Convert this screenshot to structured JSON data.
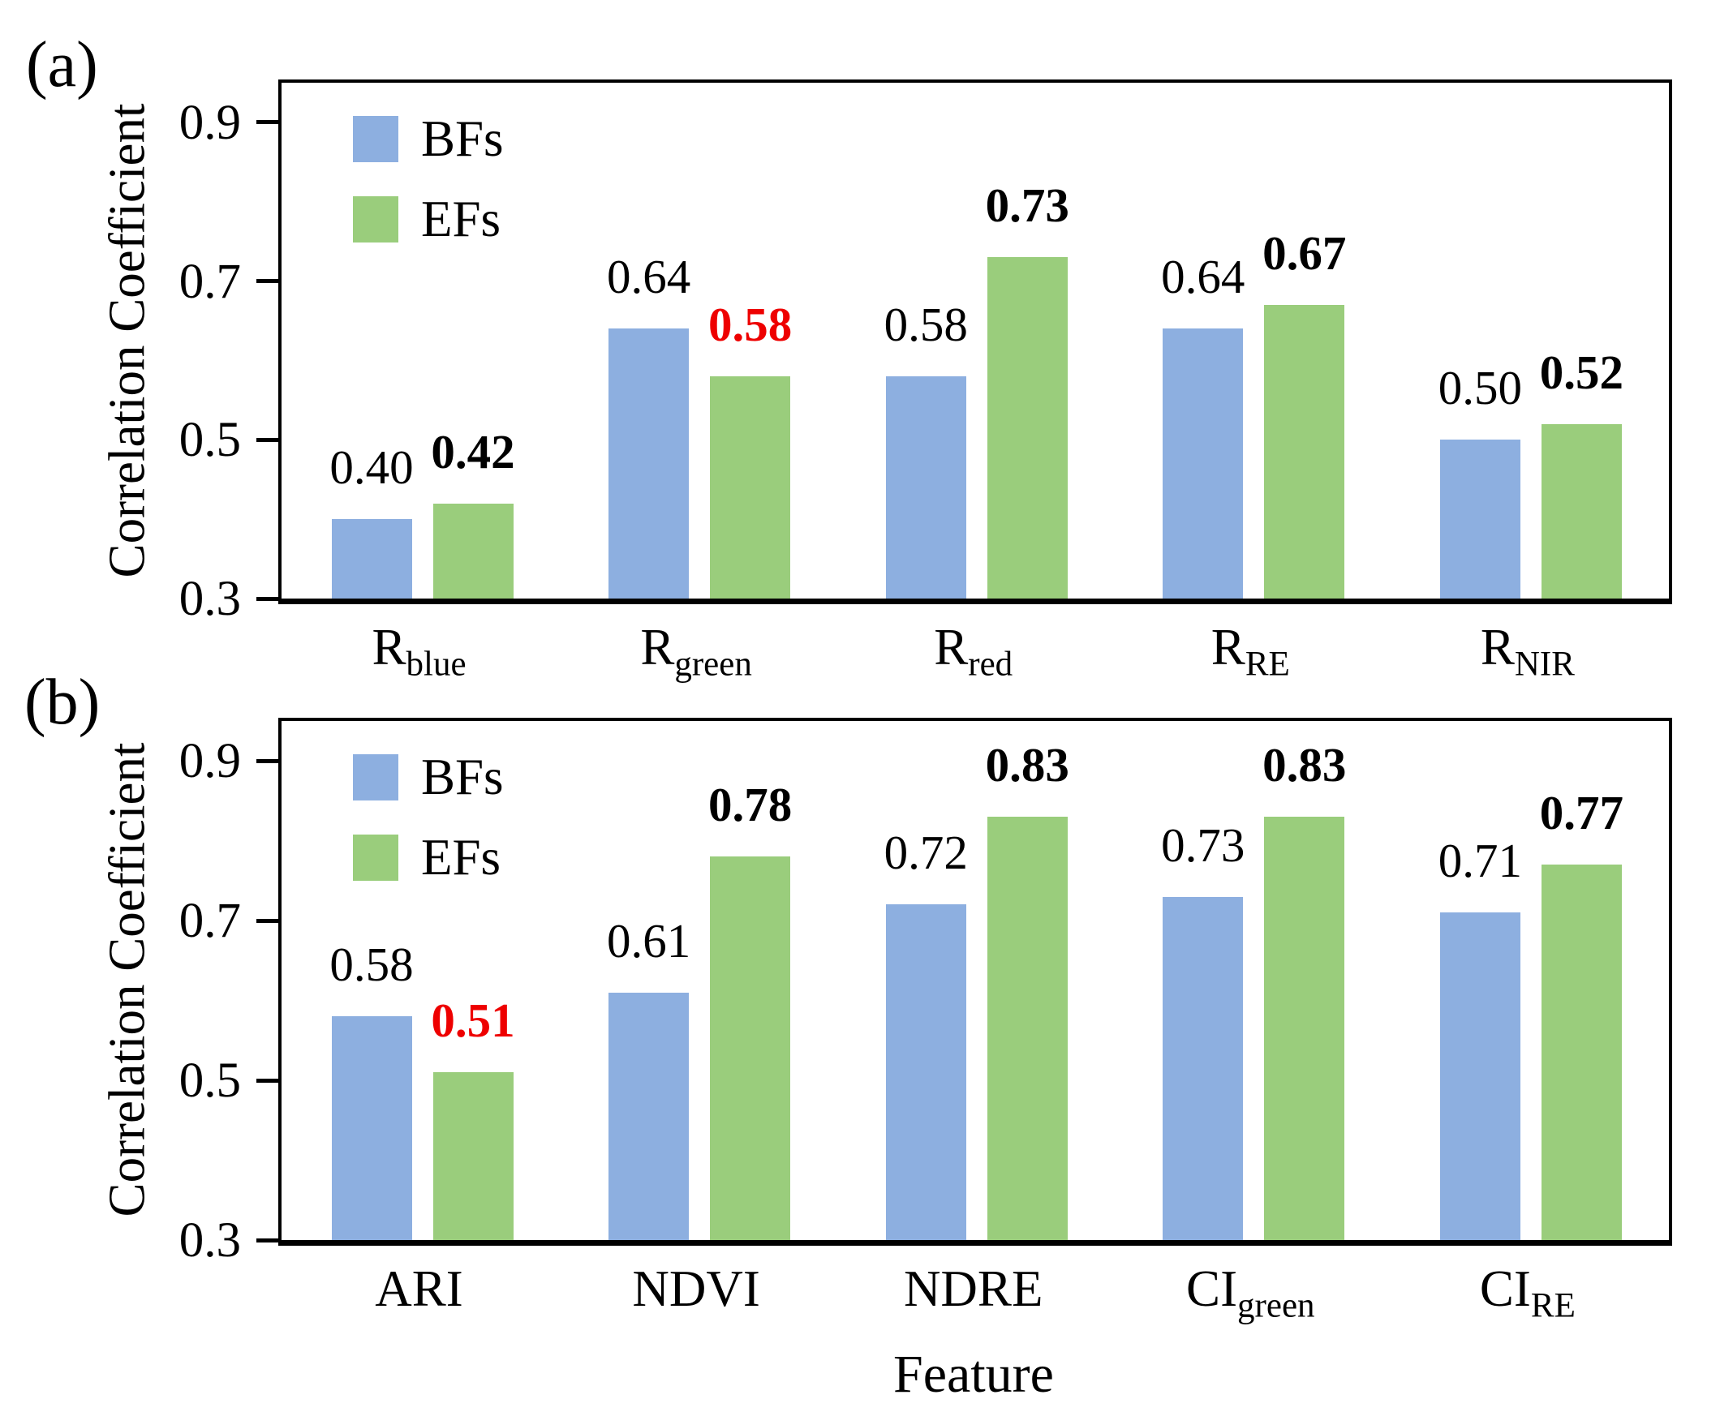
{
  "figure": {
    "background": "#ffffff",
    "axis_color": "#000000"
  },
  "colors": {
    "bfs_bar": "#8DAFE0",
    "efs_bar": "#9ACD7C",
    "highlight_red": "#EE0000",
    "text_black": "#000000"
  },
  "chart_data": [
    {
      "type": "bar",
      "panel_label": "(a)",
      "ylabel": "Correlation Coefficient",
      "xlabel": "",
      "ylim": [
        0.3,
        0.95
      ],
      "yticks": [
        "0.9",
        "0.7",
        "0.5",
        "0.3"
      ],
      "grid": false,
      "legend_position": "top-left-inside",
      "legend": [
        {
          "label": "BFs",
          "color": "#8DAFE0"
        },
        {
          "label": "EFs",
          "color": "#9ACD7C"
        }
      ],
      "categories": [
        {
          "base": "R",
          "sub": "blue"
        },
        {
          "base": "R",
          "sub": "green"
        },
        {
          "base": "R",
          "sub": "red"
        },
        {
          "base": "R",
          "sub": "RE"
        },
        {
          "base": "R",
          "sub": "NIR"
        }
      ],
      "series": [
        {
          "name": "BFs",
          "color": "#8DAFE0",
          "bold_labels": false,
          "points": [
            {
              "value": 0.4,
              "label": "0.40",
              "label_color": "#000000"
            },
            {
              "value": 0.64,
              "label": "0.64",
              "label_color": "#000000"
            },
            {
              "value": 0.58,
              "label": "0.58",
              "label_color": "#000000"
            },
            {
              "value": 0.64,
              "label": "0.64",
              "label_color": "#000000"
            },
            {
              "value": 0.5,
              "label": "0.50",
              "label_color": "#000000"
            }
          ]
        },
        {
          "name": "EFs",
          "color": "#9ACD7C",
          "bold_labels": true,
          "points": [
            {
              "value": 0.42,
              "label": "0.42",
              "label_color": "#000000"
            },
            {
              "value": 0.58,
              "label": "0.58",
              "label_color": "#EE0000"
            },
            {
              "value": 0.73,
              "label": "0.73",
              "label_color": "#000000"
            },
            {
              "value": 0.67,
              "label": "0.67",
              "label_color": "#000000"
            },
            {
              "value": 0.52,
              "label": "0.52",
              "label_color": "#000000"
            }
          ]
        }
      ]
    },
    {
      "type": "bar",
      "panel_label": "(b)",
      "ylabel": "Correlation Coefficient",
      "xlabel": "Feature",
      "ylim": [
        0.3,
        0.95
      ],
      "yticks": [
        "0.9",
        "0.7",
        "0.5",
        "0.3"
      ],
      "grid": false,
      "legend_position": "top-left-inside",
      "legend": [
        {
          "label": "BFs",
          "color": "#8DAFE0"
        },
        {
          "label": "EFs",
          "color": "#9ACD7C"
        }
      ],
      "categories": [
        {
          "base": "ARI",
          "sub": ""
        },
        {
          "base": "NDVI",
          "sub": ""
        },
        {
          "base": "NDRE",
          "sub": ""
        },
        {
          "base": "CI",
          "sub": "green"
        },
        {
          "base": "CI",
          "sub": "RE"
        }
      ],
      "series": [
        {
          "name": "BFs",
          "color": "#8DAFE0",
          "bold_labels": false,
          "points": [
            {
              "value": 0.58,
              "label": "0.58",
              "label_color": "#000000"
            },
            {
              "value": 0.61,
              "label": "0.61",
              "label_color": "#000000"
            },
            {
              "value": 0.72,
              "label": "0.72",
              "label_color": "#000000"
            },
            {
              "value": 0.73,
              "label": "0.73",
              "label_color": "#000000"
            },
            {
              "value": 0.71,
              "label": "0.71",
              "label_color": "#000000"
            }
          ]
        },
        {
          "name": "EFs",
          "color": "#9ACD7C",
          "bold_labels": true,
          "points": [
            {
              "value": 0.51,
              "label": "0.51",
              "label_color": "#EE0000"
            },
            {
              "value": 0.78,
              "label": "0.78",
              "label_color": "#000000"
            },
            {
              "value": 0.83,
              "label": "0.83",
              "label_color": "#000000"
            },
            {
              "value": 0.83,
              "label": "0.83",
              "label_color": "#000000"
            },
            {
              "value": 0.77,
              "label": "0.77",
              "label_color": "#000000"
            }
          ]
        }
      ]
    }
  ]
}
